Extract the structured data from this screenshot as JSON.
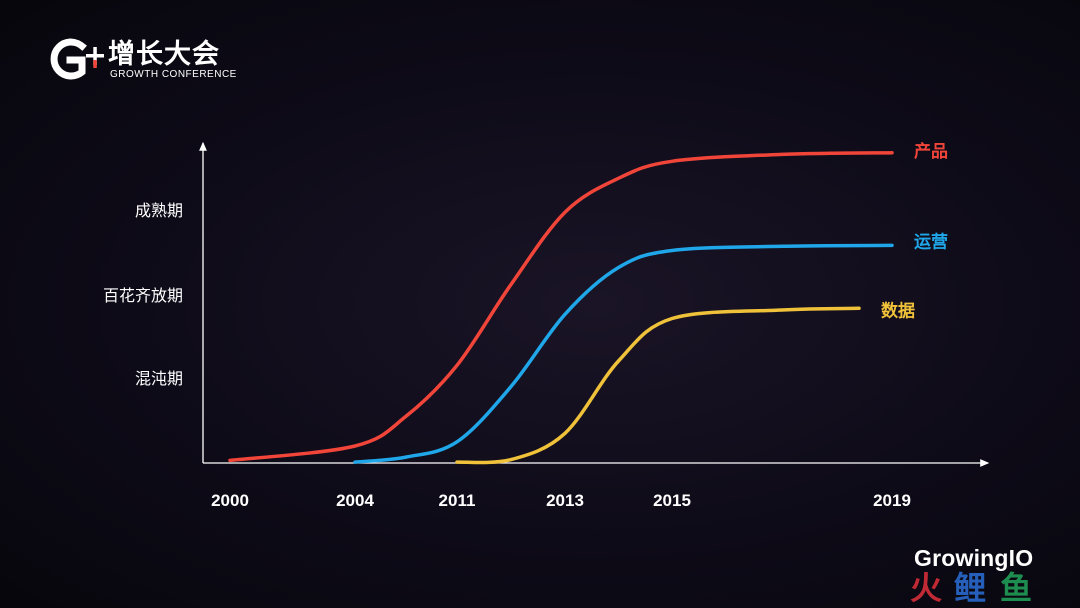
{
  "header": {
    "logo_text_cn": "增长大会",
    "logo_text_en": "GROWTH CONFERENCE"
  },
  "footer": {
    "brand": "GrowingIO",
    "watermark": "火鲤鱼"
  },
  "colors": {
    "product": "#f2453a",
    "operation": "#1fa7ea",
    "data": "#f0c23a",
    "axis": "#ffffff",
    "text": "#ffffff"
  },
  "chart_data": {
    "type": "line",
    "title": "",
    "xlabel": "",
    "ylabel": "",
    "x_ticks": [
      "2000",
      "2004",
      "2011",
      "2013",
      "2015",
      "2019"
    ],
    "y_ticks": [
      "混沌期",
      "百花齐放期",
      "成熟期"
    ],
    "ylim": [
      0,
      4
    ],
    "series": [
      {
        "name": "产品",
        "color": "#f2453a",
        "points": [
          [
            0.0,
            0.03
          ],
          [
            1.0,
            0.2
          ],
          [
            1.5,
            0.55
          ],
          [
            2.0,
            1.15
          ],
          [
            2.5,
            2.1
          ],
          [
            3.0,
            2.95
          ],
          [
            3.5,
            3.35
          ],
          [
            4.0,
            3.55
          ],
          [
            4.5,
            3.63
          ],
          [
            5.0,
            3.65
          ]
        ]
      },
      {
        "name": "运营",
        "color": "#1fa7ea",
        "points": [
          [
            1.0,
            0.01
          ],
          [
            1.5,
            0.07
          ],
          [
            2.0,
            0.25
          ],
          [
            2.5,
            0.9
          ],
          [
            3.0,
            1.75
          ],
          [
            3.5,
            2.3
          ],
          [
            4.0,
            2.5
          ],
          [
            4.5,
            2.55
          ],
          [
            5.0,
            2.56
          ]
        ]
      },
      {
        "name": "数据",
        "color": "#f0c23a",
        "points": [
          [
            2.0,
            0.01
          ],
          [
            2.5,
            0.04
          ],
          [
            3.0,
            0.35
          ],
          [
            3.5,
            1.2
          ],
          [
            4.0,
            1.7
          ],
          [
            4.5,
            1.8
          ],
          [
            4.85,
            1.82
          ]
        ]
      }
    ]
  }
}
